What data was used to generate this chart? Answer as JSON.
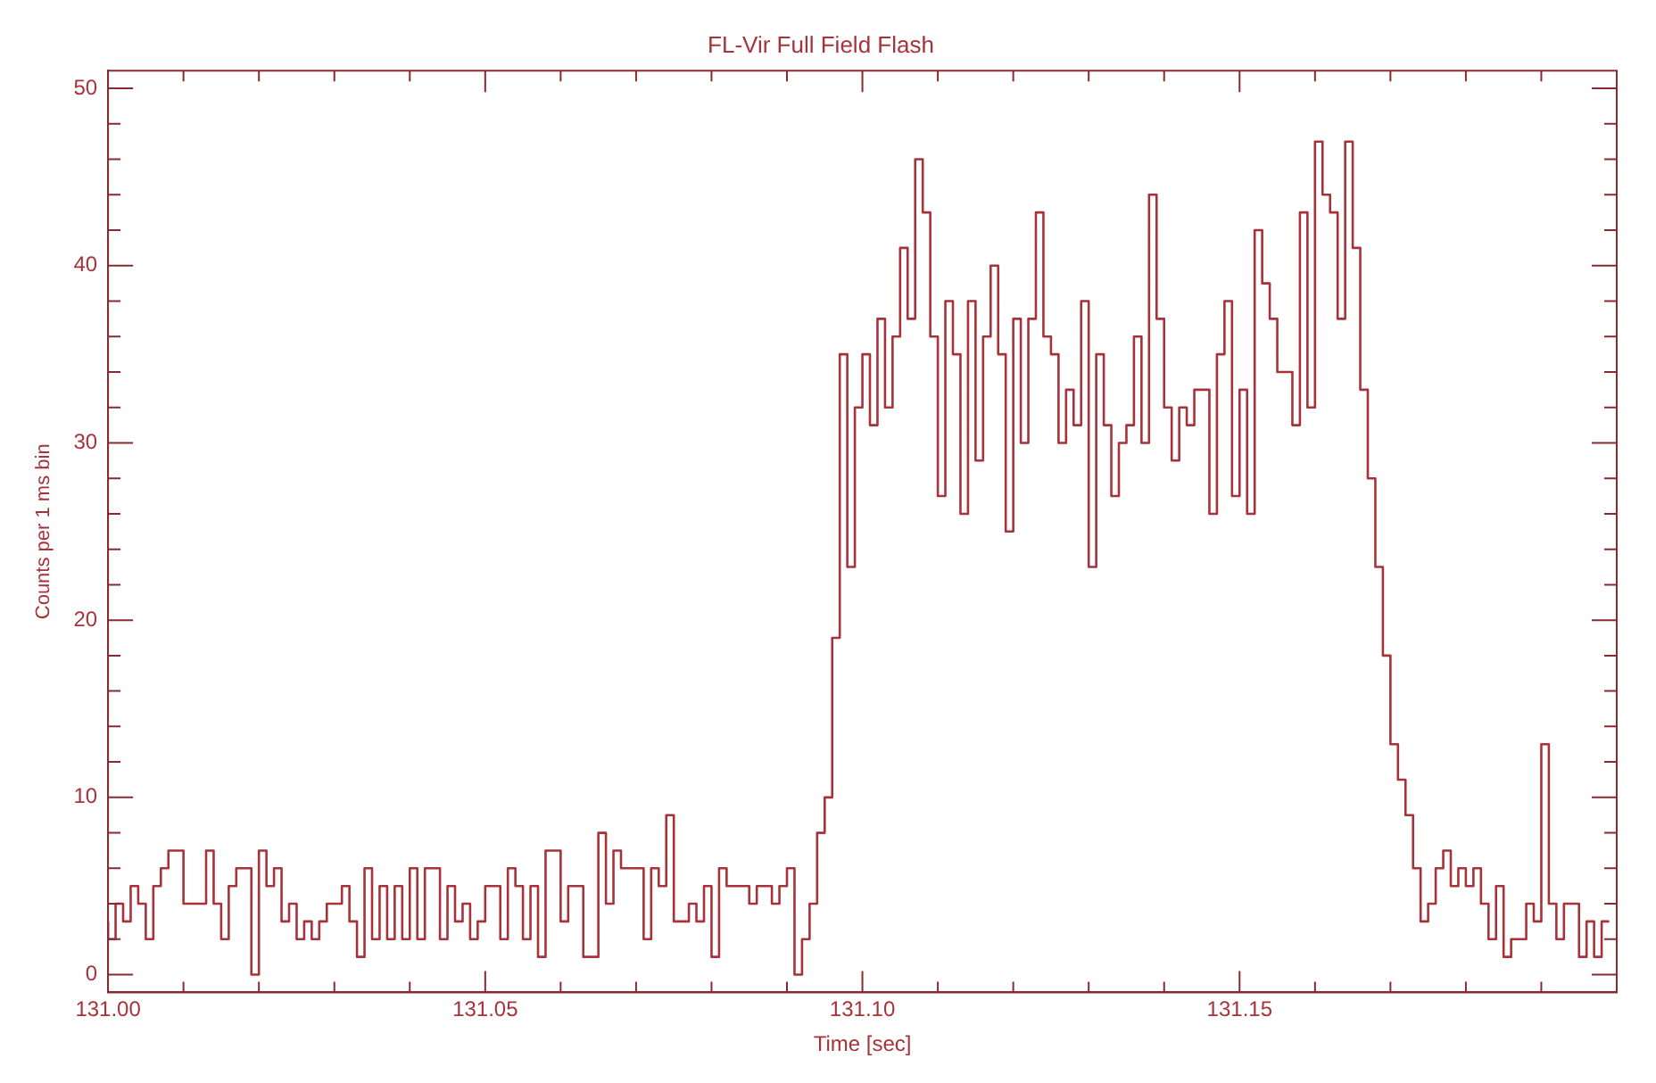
{
  "chart_data": {
    "type": "step",
    "title": "FL-Vir Full Field Flash",
    "xlabel": "Time [sec]",
    "ylabel": "Counts per 1 ms bin",
    "color": "#a8323a",
    "x": [
      131.0,
      131.001,
      131.002,
      131.003,
      131.004,
      131.005,
      131.006,
      131.007,
      131.008,
      131.009,
      131.01,
      131.011,
      131.012,
      131.013,
      131.014,
      131.015,
      131.016,
      131.017,
      131.018,
      131.019,
      131.02,
      131.021,
      131.022,
      131.023,
      131.024,
      131.025,
      131.026,
      131.027,
      131.028,
      131.029,
      131.03,
      131.031,
      131.032,
      131.033,
      131.034,
      131.035,
      131.036,
      131.037,
      131.038,
      131.039,
      131.04,
      131.041,
      131.042,
      131.043,
      131.044,
      131.045,
      131.046,
      131.047,
      131.048,
      131.049,
      131.05,
      131.051,
      131.052,
      131.053,
      131.054,
      131.055,
      131.056,
      131.057,
      131.058,
      131.059,
      131.06,
      131.061,
      131.062,
      131.063,
      131.064,
      131.065,
      131.066,
      131.067,
      131.068,
      131.069,
      131.07,
      131.071,
      131.072,
      131.073,
      131.074,
      131.075,
      131.076,
      131.077,
      131.078,
      131.079,
      131.08,
      131.081,
      131.082,
      131.083,
      131.084,
      131.085,
      131.086,
      131.087,
      131.088,
      131.089,
      131.09,
      131.091,
      131.092,
      131.093,
      131.094,
      131.095,
      131.096,
      131.097,
      131.098,
      131.099,
      131.1,
      131.101,
      131.102,
      131.103,
      131.104,
      131.105,
      131.106,
      131.107,
      131.108,
      131.109,
      131.11,
      131.111,
      131.112,
      131.113,
      131.114,
      131.115,
      131.116,
      131.117,
      131.118,
      131.119,
      131.12,
      131.121,
      131.122,
      131.123,
      131.124,
      131.125,
      131.126,
      131.127,
      131.128,
      131.129,
      131.13,
      131.131,
      131.132,
      131.133,
      131.134,
      131.135,
      131.136,
      131.137,
      131.138,
      131.139,
      131.14,
      131.141,
      131.142,
      131.143,
      131.144,
      131.145,
      131.146,
      131.147,
      131.148,
      131.149,
      131.15,
      131.151,
      131.152,
      131.153,
      131.154,
      131.155,
      131.156,
      131.157,
      131.158,
      131.159,
      131.16,
      131.161,
      131.162,
      131.163,
      131.164,
      131.165,
      131.166,
      131.167,
      131.168,
      131.169,
      131.17,
      131.171,
      131.172,
      131.173,
      131.174,
      131.175,
      131.176,
      131.177,
      131.178,
      131.179,
      131.18,
      131.181,
      131.182,
      131.183,
      131.184,
      131.185,
      131.186,
      131.187,
      131.188,
      131.189,
      131.19,
      131.191,
      131.192,
      131.193,
      131.194,
      131.195,
      131.196,
      131.197,
      131.198,
      131.199
    ],
    "values": [
      3,
      2,
      4,
      3,
      5,
      4,
      2,
      5,
      6,
      7,
      7,
      4,
      4,
      4,
      7,
      4,
      2,
      5,
      6,
      6,
      0,
      7,
      5,
      6,
      3,
      4,
      2,
      3,
      2,
      3,
      4,
      4,
      5,
      3,
      1,
      6,
      2,
      5,
      2,
      5,
      2,
      6,
      2,
      6,
      6,
      2,
      5,
      3,
      4,
      2,
      3,
      5,
      5,
      2,
      6,
      5,
      2,
      5,
      1,
      7,
      7,
      3,
      5,
      5,
      1,
      1,
      8,
      4,
      7,
      6,
      6,
      6,
      2,
      6,
      5,
      9,
      3,
      3,
      4,
      3,
      5,
      1,
      6,
      5,
      5,
      5,
      4,
      5,
      5,
      4,
      5,
      6,
      0,
      2,
      4,
      8,
      10,
      19,
      35,
      23,
      32,
      35,
      31,
      37,
      32,
      36,
      41,
      37,
      46,
      43,
      36,
      27,
      38,
      35,
      26,
      38,
      29,
      36,
      40,
      35,
      25,
      37,
      30,
      37,
      43,
      36,
      35,
      30,
      33,
      31,
      38,
      23,
      35,
      31,
      27,
      30,
      31,
      36,
      30,
      44,
      37,
      32,
      29,
      32,
      31,
      33,
      33,
      26,
      35,
      38,
      27,
      33,
      26,
      42,
      39,
      37,
      34,
      34,
      31,
      43,
      32,
      47,
      44,
      43,
      37,
      47,
      41,
      33,
      28,
      23,
      18,
      13,
      11,
      9,
      6,
      3,
      4,
      6,
      7,
      5,
      6,
      5,
      6,
      4,
      2,
      5,
      1,
      2,
      2,
      4,
      3,
      13,
      4,
      2,
      4,
      4,
      1,
      3,
      1,
      3
    ],
    "xlim": [
      131.0,
      131.2
    ],
    "xticks": [
      {
        "value": 131.0,
        "label": "131.00"
      },
      {
        "value": 131.01,
        "label": null
      },
      {
        "value": 131.02,
        "label": null
      },
      {
        "value": 131.03,
        "label": null
      },
      {
        "value": 131.04,
        "label": null
      },
      {
        "value": 131.05,
        "label": "131.05"
      },
      {
        "value": 131.06,
        "label": null
      },
      {
        "value": 131.07,
        "label": null
      },
      {
        "value": 131.08,
        "label": null
      },
      {
        "value": 131.09,
        "label": null
      },
      {
        "value": 131.1,
        "label": "131.10"
      },
      {
        "value": 131.11,
        "label": null
      },
      {
        "value": 131.12,
        "label": null
      },
      {
        "value": 131.13,
        "label": null
      },
      {
        "value": 131.14,
        "label": null
      },
      {
        "value": 131.15,
        "label": "131.15"
      },
      {
        "value": 131.16,
        "label": null
      },
      {
        "value": 131.17,
        "label": null
      },
      {
        "value": 131.18,
        "label": null
      },
      {
        "value": 131.19,
        "label": null
      },
      {
        "value": 131.2,
        "label": null
      }
    ],
    "ylim": [
      -1,
      51
    ],
    "yticks": [
      0,
      {
        "value": 2,
        "label": null
      },
      {
        "value": 4,
        "label": null
      },
      {
        "value": 6,
        "label": null
      },
      {
        "value": 8,
        "label": null
      },
      10,
      {
        "value": 12,
        "label": null
      },
      {
        "value": 14,
        "label": null
      },
      {
        "value": 16,
        "label": null
      },
      {
        "value": 18,
        "label": null
      },
      20,
      {
        "value": 22,
        "label": null
      },
      {
        "value": 24,
        "label": null
      },
      {
        "value": 26,
        "label": null
      },
      {
        "value": 28,
        "label": null
      },
      30,
      {
        "value": 32,
        "label": null
      },
      {
        "value": 34,
        "label": null
      },
      {
        "value": 36,
        "label": null
      },
      {
        "value": 38,
        "label": null
      },
      40,
      {
        "value": 42,
        "label": null
      },
      {
        "value": 44,
        "label": null
      },
      {
        "value": 46,
        "label": null
      },
      {
        "value": 48,
        "label": null
      },
      50
    ],
    "grid": false,
    "legend": false
  }
}
